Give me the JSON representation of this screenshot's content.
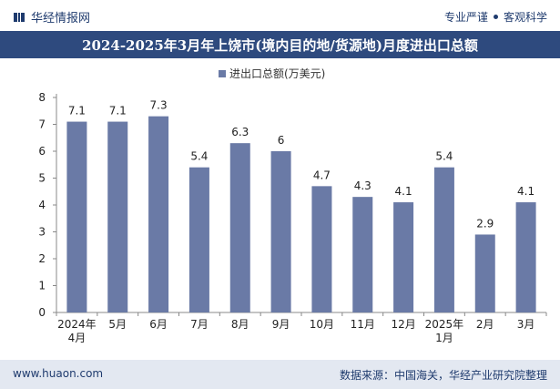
{
  "header": {
    "brand": "华经情报网",
    "tagline_left": "专业严谨",
    "tagline_right": "客观科学"
  },
  "footer": {
    "url": "www.huaon.com",
    "source": "数据来源：中国海关，华经产业研究院整理"
  },
  "colors": {
    "bar": "#6a7aa6",
    "title_bg": "#2e4a7e",
    "footer_bg": "#e3e8f1"
  },
  "chart_data": {
    "type": "bar",
    "title": "2024-2025年3月年上饶市(境内目的地/货源地)月度进出口总额",
    "legend": "进出口总额(万美元)",
    "categories": [
      "2024年4月",
      "5月",
      "6月",
      "7月",
      "8月",
      "9月",
      "10月",
      "11月",
      "12月",
      "2025年1月",
      "2月",
      "3月"
    ],
    "category_lines": [
      [
        "2024年",
        "4月"
      ],
      [
        "5月"
      ],
      [
        "6月"
      ],
      [
        "7月"
      ],
      [
        "8月"
      ],
      [
        "9月"
      ],
      [
        "10月"
      ],
      [
        "11月"
      ],
      [
        "12月"
      ],
      [
        "2025年",
        "1月"
      ],
      [
        "2月"
      ],
      [
        "3月"
      ]
    ],
    "values": [
      7.1,
      7.1,
      7.3,
      5.4,
      6.3,
      6,
      4.7,
      4.3,
      4.1,
      5.4,
      2.9,
      4.1
    ],
    "ylim": [
      0,
      8
    ],
    "yticks": [
      0,
      1,
      2,
      3,
      4,
      5,
      6,
      7,
      8
    ]
  }
}
